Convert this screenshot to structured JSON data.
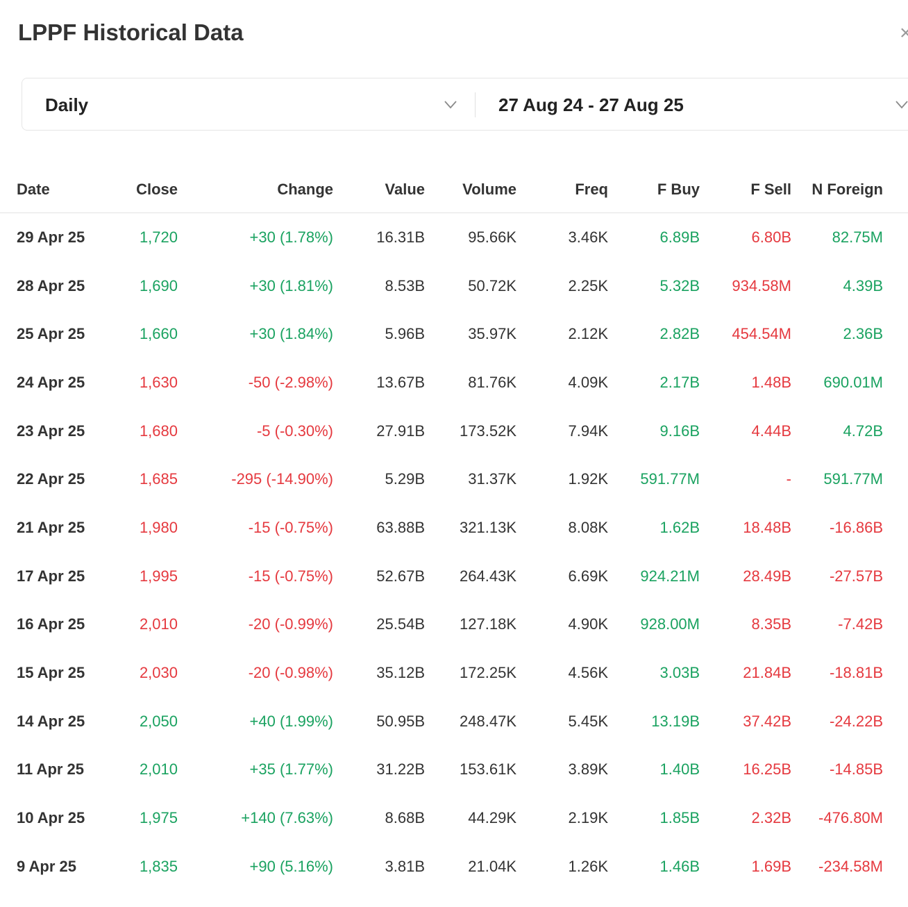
{
  "header": {
    "title": "LPPF Historical Data",
    "close_glyph": "×"
  },
  "filters": {
    "period": "Daily",
    "date_range": "27 Aug 24 - 27 Aug 25"
  },
  "colors": {
    "positive": "#1aa260",
    "negative": "#e5393f",
    "neutral": "#333333"
  },
  "table": {
    "columns": [
      "Date",
      "Close",
      "Change",
      "Value",
      "Volume",
      "Freq",
      "F Buy",
      "F Sell",
      "N Foreign"
    ],
    "rows": [
      {
        "date": "29 Apr 25",
        "close": "1,720",
        "change": "+30 (1.78%)",
        "value": "16.31B",
        "volume": "95.66K",
        "freq": "3.46K",
        "fbuy": "6.89B",
        "fsell": "6.80B",
        "nforeign": "82.75M",
        "dir": "pos",
        "nf_dir": "pos"
      },
      {
        "date": "28 Apr 25",
        "close": "1,690",
        "change": "+30 (1.81%)",
        "value": "8.53B",
        "volume": "50.72K",
        "freq": "2.25K",
        "fbuy": "5.32B",
        "fsell": "934.58M",
        "nforeign": "4.39B",
        "dir": "pos",
        "nf_dir": "pos"
      },
      {
        "date": "25 Apr 25",
        "close": "1,660",
        "change": "+30 (1.84%)",
        "value": "5.96B",
        "volume": "35.97K",
        "freq": "2.12K",
        "fbuy": "2.82B",
        "fsell": "454.54M",
        "nforeign": "2.36B",
        "dir": "pos",
        "nf_dir": "pos"
      },
      {
        "date": "24 Apr 25",
        "close": "1,630",
        "change": "-50 (-2.98%)",
        "value": "13.67B",
        "volume": "81.76K",
        "freq": "4.09K",
        "fbuy": "2.17B",
        "fsell": "1.48B",
        "nforeign": "690.01M",
        "dir": "neg",
        "nf_dir": "pos"
      },
      {
        "date": "23 Apr 25",
        "close": "1,680",
        "change": "-5 (-0.30%)",
        "value": "27.91B",
        "volume": "173.52K",
        "freq": "7.94K",
        "fbuy": "9.16B",
        "fsell": "4.44B",
        "nforeign": "4.72B",
        "dir": "neg",
        "nf_dir": "pos"
      },
      {
        "date": "22 Apr 25",
        "close": "1,685",
        "change": "-295 (-14.90%)",
        "value": "5.29B",
        "volume": "31.37K",
        "freq": "1.92K",
        "fbuy": "591.77M",
        "fsell": "-",
        "nforeign": "591.77M",
        "dir": "neg",
        "nf_dir": "pos"
      },
      {
        "date": "21 Apr 25",
        "close": "1,980",
        "change": "-15 (-0.75%)",
        "value": "63.88B",
        "volume": "321.13K",
        "freq": "8.08K",
        "fbuy": "1.62B",
        "fsell": "18.48B",
        "nforeign": "-16.86B",
        "dir": "neg",
        "nf_dir": "neg"
      },
      {
        "date": "17 Apr 25",
        "close": "1,995",
        "change": "-15 (-0.75%)",
        "value": "52.67B",
        "volume": "264.43K",
        "freq": "6.69K",
        "fbuy": "924.21M",
        "fsell": "28.49B",
        "nforeign": "-27.57B",
        "dir": "neg",
        "nf_dir": "neg"
      },
      {
        "date": "16 Apr 25",
        "close": "2,010",
        "change": "-20 (-0.99%)",
        "value": "25.54B",
        "volume": "127.18K",
        "freq": "4.90K",
        "fbuy": "928.00M",
        "fsell": "8.35B",
        "nforeign": "-7.42B",
        "dir": "neg",
        "nf_dir": "neg"
      },
      {
        "date": "15 Apr 25",
        "close": "2,030",
        "change": "-20 (-0.98%)",
        "value": "35.12B",
        "volume": "172.25K",
        "freq": "4.56K",
        "fbuy": "3.03B",
        "fsell": "21.84B",
        "nforeign": "-18.81B",
        "dir": "neg",
        "nf_dir": "neg"
      },
      {
        "date": "14 Apr 25",
        "close": "2,050",
        "change": "+40 (1.99%)",
        "value": "50.95B",
        "volume": "248.47K",
        "freq": "5.45K",
        "fbuy": "13.19B",
        "fsell": "37.42B",
        "nforeign": "-24.22B",
        "dir": "pos",
        "nf_dir": "neg"
      },
      {
        "date": "11 Apr 25",
        "close": "2,010",
        "change": "+35 (1.77%)",
        "value": "31.22B",
        "volume": "153.61K",
        "freq": "3.89K",
        "fbuy": "1.40B",
        "fsell": "16.25B",
        "nforeign": "-14.85B",
        "dir": "pos",
        "nf_dir": "neg"
      },
      {
        "date": "10 Apr 25",
        "close": "1,975",
        "change": "+140 (7.63%)",
        "value": "8.68B",
        "volume": "44.29K",
        "freq": "2.19K",
        "fbuy": "1.85B",
        "fsell": "2.32B",
        "nforeign": "-476.80M",
        "dir": "pos",
        "nf_dir": "neg"
      },
      {
        "date": "9 Apr 25",
        "close": "1,835",
        "change": "+90 (5.16%)",
        "value": "3.81B",
        "volume": "21.04K",
        "freq": "1.26K",
        "fbuy": "1.46B",
        "fsell": "1.69B",
        "nforeign": "-234.58M",
        "dir": "pos",
        "nf_dir": "neg"
      }
    ]
  }
}
